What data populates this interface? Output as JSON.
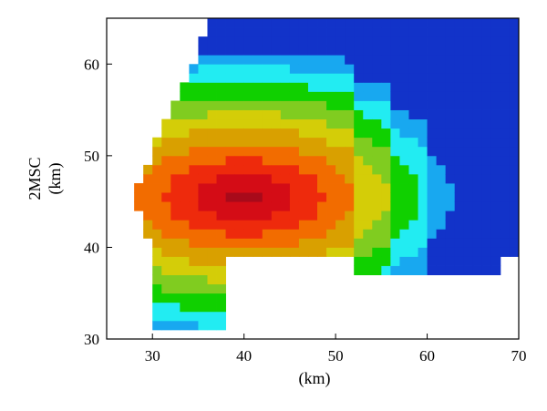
{
  "chart_data": {
    "type": "heatmap",
    "title": "",
    "xlabel": "(km)",
    "ylabel_lines": [
      "2MSC",
      "(km)"
    ],
    "xlim": [
      25,
      70
    ],
    "ylim": [
      30,
      65
    ],
    "xticks": [
      30,
      40,
      50,
      60,
      70
    ],
    "yticks": [
      30,
      40,
      50,
      60
    ],
    "cell_size_km": 1,
    "grid": false,
    "legend": "none",
    "colormap": [
      "#1233c9",
      "#18a8f0",
      "#22ecf2",
      "#10d000",
      "#80cc20",
      "#d4cd08",
      "#d9a000",
      "#f26c00",
      "#ee2a0c",
      "#d40c16",
      "#a80a1a"
    ],
    "colormap_note": "levels 1 to 11, low to high",
    "shape_rows": [
      {
        "y": 64,
        "x0": 36,
        "x1": 70,
        "level": 4
      },
      {
        "y": 62,
        "x0": 35,
        "x1": 70,
        "level": 4
      },
      {
        "y": 60,
        "x0": 34,
        "x1": 70,
        "level": 4
      },
      {
        "y": 58,
        "x0": 33,
        "x1": 70,
        "level": 4
      },
      {
        "y": 56,
        "x0": 32,
        "x1": 70,
        "level": 4
      },
      {
        "y": 54,
        "x0": 31,
        "x1": 70,
        "level": 4
      },
      {
        "y": 52,
        "x0": 30,
        "x1": 70,
        "level": 4
      },
      {
        "y": 50,
        "x0": 29,
        "x1": 70,
        "level": 4
      },
      {
        "y": 48,
        "x0": 28,
        "x1": 70,
        "level": 4
      },
      {
        "y": 46,
        "x0": 27,
        "x1": 70,
        "level": 4
      },
      {
        "y": 44,
        "x0": 26,
        "x1": 70,
        "level": 4
      },
      {
        "y": 42,
        "x0": 26,
        "x1": 70,
        "level": 4
      },
      {
        "y": 40,
        "x0": 27,
        "x1": 70,
        "level": 4
      },
      {
        "y": 38,
        "x0": 27,
        "x1": 69,
        "level": 4
      },
      {
        "y": 36,
        "x0": 28,
        "x1": 36,
        "level": 4
      },
      {
        "y": 34,
        "x0": 29,
        "x1": 37,
        "level": 4
      },
      {
        "y": 32,
        "x0": 33,
        "x1": 36,
        "level": 4
      }
    ]
  }
}
